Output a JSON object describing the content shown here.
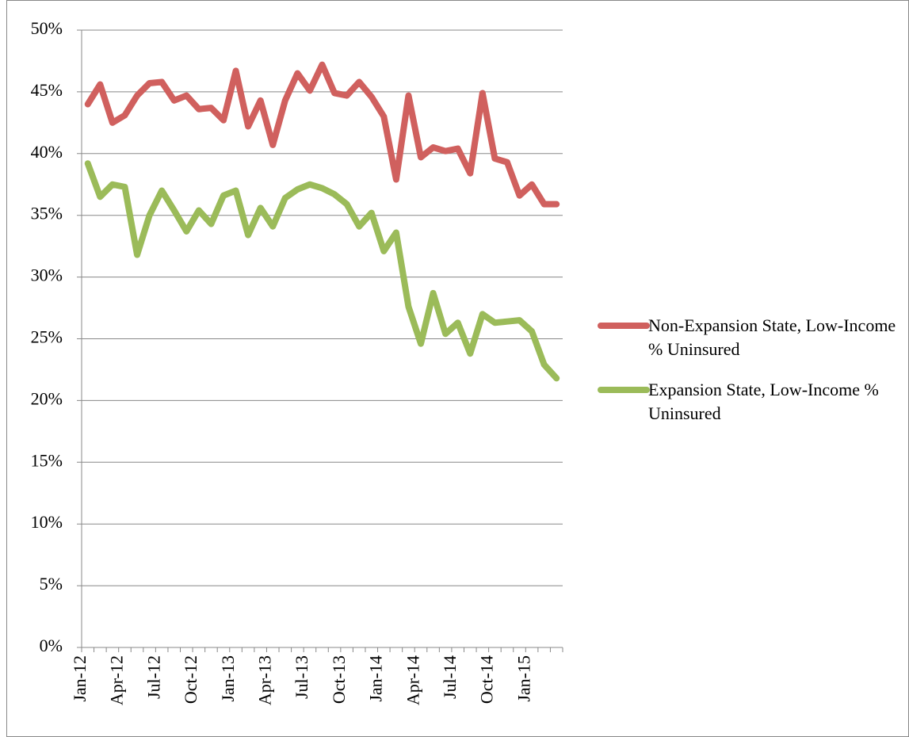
{
  "chart_data": {
    "type": "line",
    "categories": [
      "Jan-12",
      null,
      null,
      "Apr-12",
      null,
      null,
      "Jul-12",
      null,
      null,
      "Oct-12",
      null,
      null,
      "Jan-13",
      null,
      null,
      "Apr-13",
      null,
      null,
      "Jul-13",
      null,
      null,
      "Oct-13",
      null,
      null,
      "Jan-14",
      null,
      null,
      "Apr-14",
      null,
      null,
      "Jul-14",
      null,
      null,
      "Oct-14",
      null,
      null,
      "Jan-15",
      null,
      null
    ],
    "series": [
      {
        "name": "Non-Expansion State, Low-Income % Uninsured",
        "color": "#d0605e",
        "values": [
          44.0,
          45.6,
          42.5,
          43.1,
          44.7,
          45.7,
          45.8,
          44.3,
          44.7,
          43.6,
          43.7,
          42.7,
          46.7,
          42.2,
          44.3,
          40.7,
          44.3,
          46.5,
          45.1,
          47.2,
          44.9,
          44.7,
          45.8,
          44.6,
          43.0,
          37.9,
          44.7,
          39.7,
          40.5,
          40.2,
          40.4,
          38.4,
          44.9,
          39.6,
          39.3,
          36.6,
          37.5,
          35.9,
          35.9
        ]
      },
      {
        "name": "Expansion State, Low-Income % Uninsured",
        "color": "#9bbb59",
        "values": [
          39.2,
          36.5,
          37.5,
          37.3,
          31.8,
          35.0,
          37.0,
          35.4,
          33.7,
          35.4,
          34.3,
          36.6,
          37.0,
          33.4,
          35.6,
          34.1,
          36.4,
          37.1,
          37.5,
          37.2,
          36.7,
          35.9,
          34.1,
          35.2,
          32.1,
          33.6,
          27.6,
          24.6,
          28.7,
          25.4,
          26.3,
          23.8,
          27.0,
          26.3,
          26.4,
          26.5,
          25.6,
          22.9,
          21.8
        ]
      }
    ],
    "ylim": [
      0,
      50
    ],
    "yticks": [
      {
        "value": 0,
        "label": "0%"
      },
      {
        "value": 5,
        "label": "5%"
      },
      {
        "value": 10,
        "label": "10%"
      },
      {
        "value": 15,
        "label": "15%"
      },
      {
        "value": 20,
        "label": "20%"
      },
      {
        "value": 25,
        "label": "25%"
      },
      {
        "value": 30,
        "label": "30%"
      },
      {
        "value": 35,
        "label": "35%"
      },
      {
        "value": 40,
        "label": "40%"
      },
      {
        "value": 45,
        "label": "45%"
      },
      {
        "value": 50,
        "label": "50%"
      }
    ],
    "grid": true,
    "legend": "right"
  }
}
